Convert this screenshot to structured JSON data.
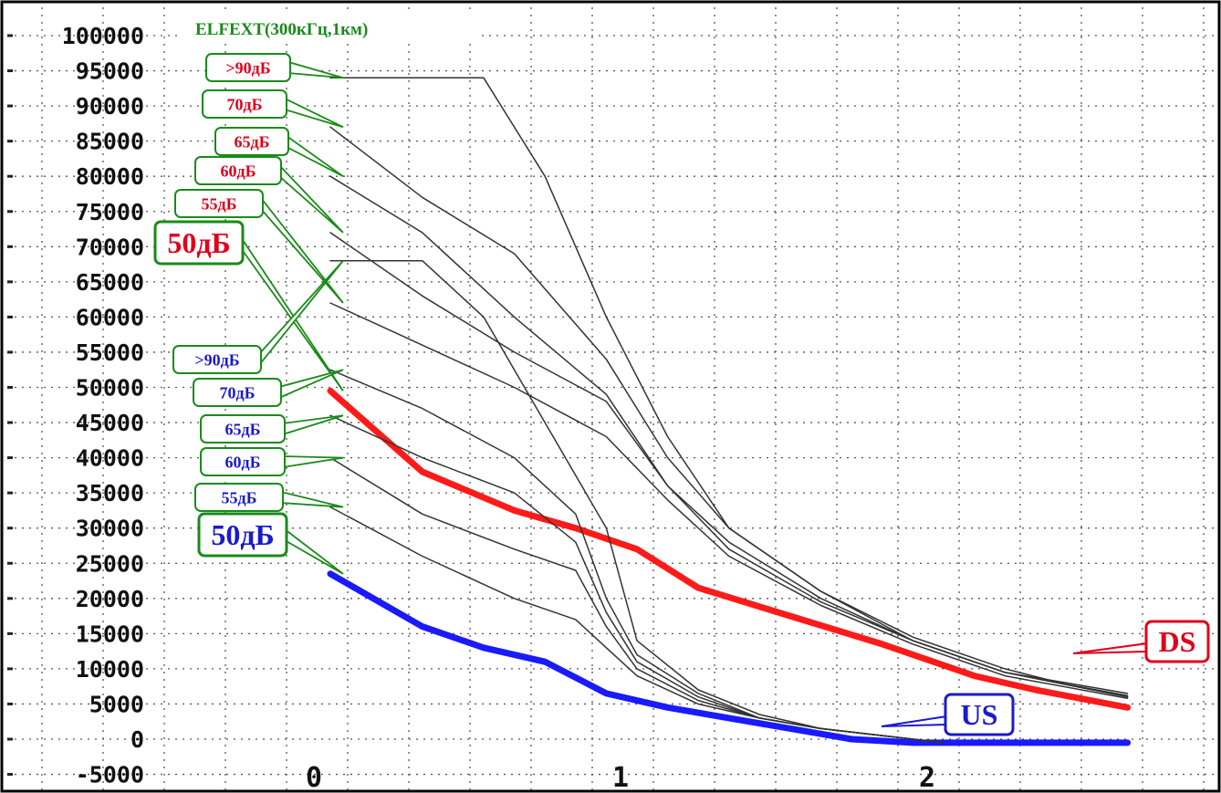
{
  "chart_data": {
    "type": "line",
    "title": "ELFEXT(300кГц,1км)",
    "xlabel": "",
    "ylabel": "",
    "xlim": [
      0,
      2.6
    ],
    "ylim": [
      -5000,
      100000
    ],
    "x_ticks": [
      "0",
      "1",
      "2"
    ],
    "y_ticks": [
      "100000",
      "95000",
      "90000",
      "85000",
      "80000",
      "75000",
      "70000",
      "65000",
      "60000",
      "55000",
      "50000",
      "45000",
      "40000",
      "35000",
      "30000",
      "25000",
      "20000",
      "15000",
      "10000",
      "5000",
      "0",
      "-5000"
    ],
    "grid": true,
    "colors": {
      "ds": "#ff1a1a",
      "us": "#1a1aff",
      "thin": "#333333",
      "callout_border": "#1a8a1a",
      "ds_label": "#e0001a",
      "us_label": "#1a1acc"
    },
    "series": [
      {
        "name": "DS",
        "color": "#ff1a1a",
        "emphasis": true,
        "points": [
          [
            0.0,
            49500
          ],
          [
            0.3,
            38000
          ],
          [
            0.6,
            32500
          ],
          [
            0.8,
            30000
          ],
          [
            1.0,
            27000
          ],
          [
            1.2,
            21500
          ],
          [
            1.5,
            17500
          ],
          [
            1.8,
            13500
          ],
          [
            2.1,
            9000
          ],
          [
            2.3,
            7000
          ],
          [
            2.6,
            4500
          ]
        ]
      },
      {
        "name": "US",
        "color": "#1a1aff",
        "emphasis": true,
        "points": [
          [
            0.0,
            23500
          ],
          [
            0.3,
            16000
          ],
          [
            0.5,
            13000
          ],
          [
            0.7,
            11000
          ],
          [
            0.9,
            6500
          ],
          [
            1.1,
            4500
          ],
          [
            1.3,
            3000
          ],
          [
            1.5,
            1500
          ],
          [
            1.7,
            0
          ],
          [
            1.9,
            -500
          ],
          [
            2.6,
            -500
          ]
        ]
      },
      {
        "points": [
          [
            0.0,
            94000
          ],
          [
            0.5,
            94000
          ],
          [
            0.7,
            80000
          ],
          [
            0.9,
            60000
          ],
          [
            1.1,
            43000
          ],
          [
            1.3,
            30000
          ],
          [
            1.6,
            21000
          ],
          [
            1.9,
            14000
          ],
          [
            2.2,
            9500
          ],
          [
            2.4,
            8000
          ],
          [
            2.6,
            6500
          ]
        ]
      },
      {
        "points": [
          [
            0.0,
            87000
          ],
          [
            0.3,
            77000
          ],
          [
            0.6,
            69000
          ],
          [
            0.9,
            54000
          ],
          [
            1.1,
            40000
          ],
          [
            1.3,
            30000
          ],
          [
            1.6,
            21000
          ],
          [
            1.9,
            14500
          ],
          [
            2.2,
            10000
          ],
          [
            2.4,
            7800
          ],
          [
            2.6,
            6200
          ]
        ]
      },
      {
        "points": [
          [
            0.0,
            80000
          ],
          [
            0.3,
            72000
          ],
          [
            0.6,
            60000
          ],
          [
            0.9,
            49000
          ],
          [
            1.1,
            36000
          ],
          [
            1.3,
            28000
          ],
          [
            1.6,
            20000
          ],
          [
            1.9,
            14000
          ],
          [
            2.2,
            9500
          ],
          [
            2.6,
            6000
          ]
        ]
      },
      {
        "points": [
          [
            0.0,
            68000
          ],
          [
            0.3,
            68000
          ],
          [
            0.5,
            60000
          ],
          [
            0.7,
            45000
          ],
          [
            0.9,
            30000
          ],
          [
            1.0,
            14000
          ],
          [
            1.2,
            7000
          ],
          [
            1.4,
            3500
          ],
          [
            1.6,
            1500
          ],
          [
            1.8,
            500
          ],
          [
            2.0,
            -500
          ]
        ]
      },
      {
        "points": [
          [
            0.0,
            72000
          ],
          [
            0.3,
            63000
          ],
          [
            0.6,
            55000
          ],
          [
            0.9,
            48000
          ],
          [
            1.1,
            36000
          ],
          [
            1.3,
            27000
          ],
          [
            1.6,
            19500
          ],
          [
            1.9,
            14000
          ],
          [
            2.2,
            9500
          ],
          [
            2.6,
            6000
          ]
        ]
      },
      {
        "points": [
          [
            0.0,
            62000
          ],
          [
            0.3,
            56000
          ],
          [
            0.6,
            50000
          ],
          [
            0.9,
            43000
          ],
          [
            1.1,
            34000
          ],
          [
            1.3,
            26000
          ],
          [
            1.6,
            19000
          ],
          [
            1.9,
            13500
          ],
          [
            2.2,
            9000
          ],
          [
            2.6,
            5800
          ]
        ]
      },
      {
        "points": [
          [
            0.0,
            52500
          ],
          [
            0.3,
            47000
          ],
          [
            0.6,
            40000
          ],
          [
            0.8,
            32000
          ],
          [
            0.9,
            20000
          ],
          [
            1.0,
            12000
          ],
          [
            1.2,
            6500
          ],
          [
            1.4,
            3000
          ],
          [
            1.6,
            1500
          ],
          [
            1.8,
            500
          ],
          [
            2.0,
            -500
          ]
        ]
      },
      {
        "points": [
          [
            0.0,
            46000
          ],
          [
            0.3,
            40000
          ],
          [
            0.6,
            35000
          ],
          [
            0.8,
            28000
          ],
          [
            0.9,
            18000
          ],
          [
            1.0,
            11000
          ],
          [
            1.2,
            6000
          ],
          [
            1.4,
            3000
          ],
          [
            1.6,
            1500
          ],
          [
            1.8,
            500
          ],
          [
            2.0,
            -500
          ]
        ]
      },
      {
        "points": [
          [
            0.0,
            40000
          ],
          [
            0.3,
            32000
          ],
          [
            0.6,
            27000
          ],
          [
            0.8,
            24000
          ],
          [
            0.9,
            16000
          ],
          [
            1.0,
            10000
          ],
          [
            1.2,
            5500
          ],
          [
            1.4,
            3000
          ],
          [
            1.6,
            1500
          ],
          [
            1.8,
            500
          ],
          [
            2.0,
            -500
          ]
        ]
      },
      {
        "points": [
          [
            0.0,
            33000
          ],
          [
            0.3,
            26000
          ],
          [
            0.6,
            20000
          ],
          [
            0.8,
            17000
          ],
          [
            0.9,
            13000
          ],
          [
            1.0,
            9000
          ],
          [
            1.2,
            5000
          ],
          [
            1.4,
            3000
          ],
          [
            1.6,
            1500
          ],
          [
            1.8,
            500
          ],
          [
            2.0,
            -500
          ]
        ]
      }
    ],
    "annotations": [
      {
        "text": ">90дБ",
        "color": "#e0001a",
        "size": "small",
        "target": [
          0.0,
          94000
        ],
        "at": [
          0.0,
          94000
        ]
      },
      {
        "text": "70дБ",
        "color": "#e0001a",
        "size": "small",
        "target": [
          0.0,
          87000
        ],
        "at": [
          0.0,
          87000
        ]
      },
      {
        "text": "65дБ",
        "color": "#e0001a",
        "size": "small",
        "target": [
          0.0,
          80000
        ],
        "at": [
          0.0,
          80000
        ]
      },
      {
        "text": "60дБ",
        "color": "#e0001a",
        "size": "small",
        "target": [
          0.0,
          72000
        ],
        "at": [
          0.0,
          72000
        ]
      },
      {
        "text": "55дБ",
        "color": "#e0001a",
        "size": "small",
        "target": [
          0.0,
          62000
        ],
        "at": [
          0.0,
          62000
        ]
      },
      {
        "text": "50дБ",
        "color": "#e0001a",
        "size": "large",
        "target": [
          0.0,
          49500
        ],
        "at": [
          0.0,
          49500
        ]
      },
      {
        "text": ">90дБ",
        "color": "#1a1acc",
        "size": "small",
        "target": [
          0.0,
          68000
        ],
        "at": [
          0.0,
          68000
        ]
      },
      {
        "text": "70дБ",
        "color": "#1a1acc",
        "size": "small",
        "target": [
          0.0,
          52500
        ],
        "at": [
          0.0,
          52500
        ]
      },
      {
        "text": "65дБ",
        "color": "#1a1acc",
        "size": "small",
        "target": [
          0.0,
          46000
        ],
        "at": [
          0.0,
          46000
        ]
      },
      {
        "text": "60дБ",
        "color": "#1a1acc",
        "size": "small",
        "target": [
          0.0,
          40000
        ],
        "at": [
          0.0,
          40000
        ]
      },
      {
        "text": "55дБ",
        "color": "#1a1acc",
        "size": "small",
        "target": [
          0.0,
          33000
        ],
        "at": [
          0.0,
          33000
        ]
      },
      {
        "text": "50дБ",
        "color": "#1a1acc",
        "size": "large",
        "target": [
          0.0,
          23500
        ],
        "at": [
          0.0,
          23500
        ]
      },
      {
        "text": "DS",
        "color": "#e0001a",
        "size": "large",
        "target": [
          2.0,
          9500
        ],
        "at": [
          2.0,
          9500
        ]
      },
      {
        "text": "US",
        "color": "#1a1acc",
        "size": "large",
        "target": [
          1.7,
          0
        ],
        "at": [
          1.7,
          0
        ]
      }
    ]
  }
}
